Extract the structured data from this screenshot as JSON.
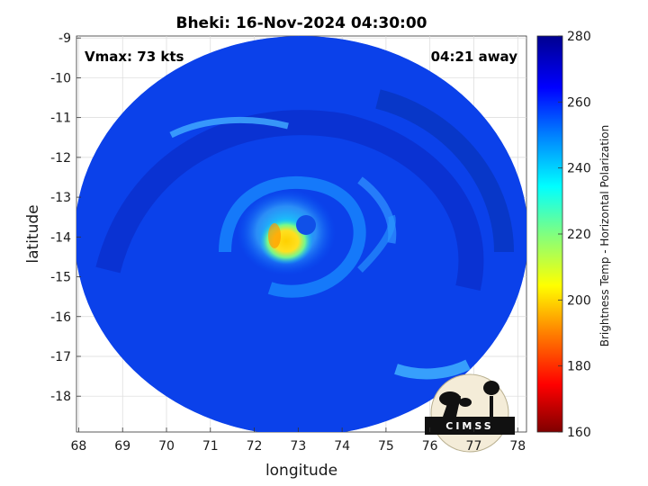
{
  "title": "Bheki: 16-Nov-2024 04:30:00",
  "vmax_label": "Vmax: 73 kts",
  "time_away_label": "04:21 away",
  "map": {
    "xlabel": "longitude",
    "ylabel": "latitude",
    "x_ticks": [
      "68",
      "69",
      "70",
      "71",
      "72",
      "73",
      "74",
      "75",
      "76",
      "77",
      "78"
    ],
    "y_ticks": [
      "-9",
      "-10",
      "-11",
      "-12",
      "-13",
      "-14",
      "-15",
      "-16",
      "-17",
      "-18"
    ],
    "lon_range": [
      67.95,
      78.2
    ],
    "lat_range": [
      -18.9,
      -8.95
    ],
    "grid": true,
    "storm_center": {
      "lon": 72.8,
      "lat": -14.2
    }
  },
  "colorbar": {
    "label": "Brightness Temp - Horizontal Polarization",
    "ticks": [
      "280",
      "260",
      "240",
      "220",
      "200",
      "180",
      "160"
    ],
    "range": [
      160,
      280
    ],
    "colors": [
      "#800000",
      "#ff0000",
      "#ff8000",
      "#ffff00",
      "#80ff80",
      "#00ffff",
      "#0080ff",
      "#0000ff",
      "#000090"
    ]
  },
  "logo": {
    "text": "CIMSS",
    "name": "CIMSS"
  }
}
